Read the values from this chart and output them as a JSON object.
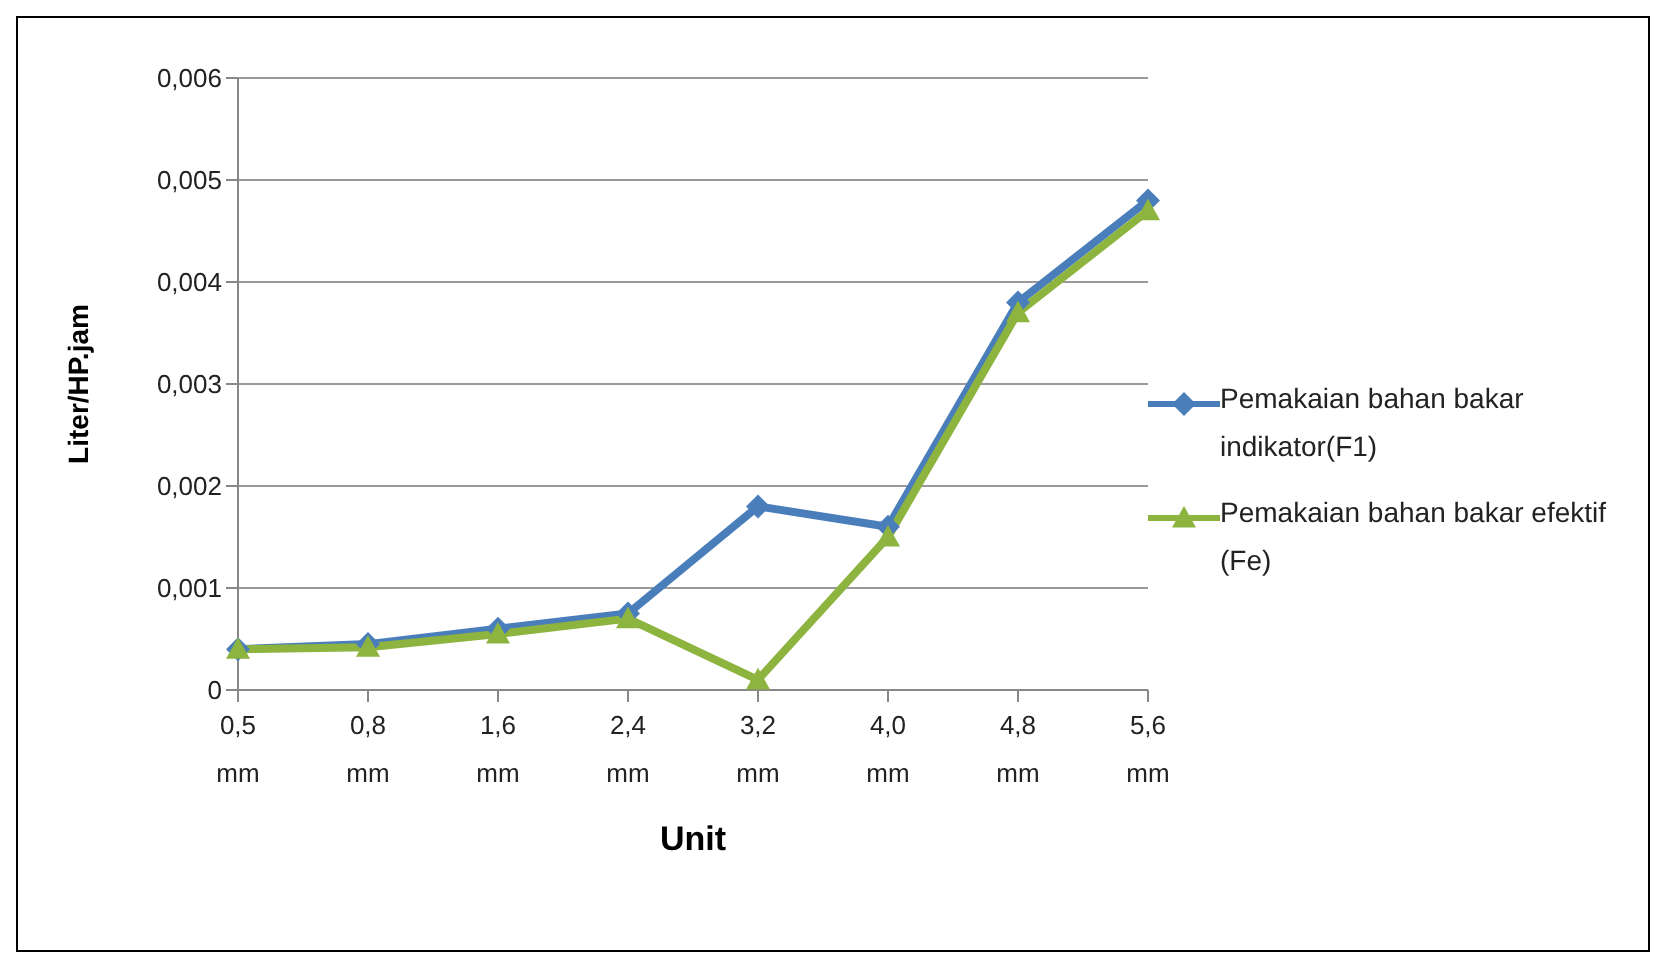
{
  "chart_data": {
    "type": "line",
    "xlabel": "Unit",
    "ylabel": "Liter/HP.jam",
    "categories": [
      "0,5 mm",
      "0,8 mm",
      "1,6 mm",
      "2,4 mm",
      "3,2 mm",
      "4,0 mm",
      "4,8 mm",
      "5,6 mm"
    ],
    "series": [
      {
        "name": "Pemakaian bahan bakar indikator(F1)",
        "color": "#4a7ebb",
        "marker": "diamond",
        "values": [
          0.0004,
          0.00045,
          0.0006,
          0.00075,
          0.0018,
          0.0016,
          0.0038,
          0.0048
        ]
      },
      {
        "name": "Pemakaian bahan bakar efektif (Fe)",
        "color": "#8db43f",
        "marker": "triangle",
        "values": [
          0.0004,
          0.00042,
          0.00055,
          0.0007,
          0.0001,
          0.0015,
          0.0037,
          0.0047
        ]
      }
    ],
    "ylim": [
      0,
      0.006
    ],
    "yticks": [
      {
        "value": 0,
        "label": "0"
      },
      {
        "value": 0.001,
        "label": "0,001"
      },
      {
        "value": 0.002,
        "label": "0,002"
      },
      {
        "value": 0.003,
        "label": "0,003"
      },
      {
        "value": 0.004,
        "label": "0,004"
      },
      {
        "value": 0.005,
        "label": "0,005"
      },
      {
        "value": 0.006,
        "label": "0,006"
      }
    ],
    "grid": "y",
    "legend": "right",
    "line_style": "solid"
  }
}
